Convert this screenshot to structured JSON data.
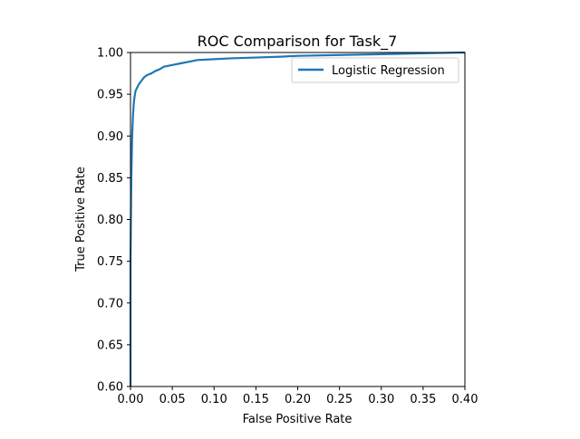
{
  "chart_data": {
    "type": "line",
    "title": "ROC Comparison for Task_7",
    "xlabel": "False Positive Rate",
    "ylabel": "True Positive Rate",
    "xlim": [
      0.0,
      0.4
    ],
    "ylim": [
      0.6,
      1.0
    ],
    "xticks": [
      "0.00",
      "0.05",
      "0.10",
      "0.15",
      "0.20",
      "0.25",
      "0.30",
      "0.35",
      "0.40"
    ],
    "yticks": [
      "0.60",
      "0.65",
      "0.70",
      "0.75",
      "0.80",
      "0.85",
      "0.90",
      "0.95",
      "1.00"
    ],
    "grid": false,
    "legend_position": "top-right",
    "series": [
      {
        "name": "Logistic Regression",
        "color": "#1f77b4",
        "x": [
          0.0,
          0.0,
          0.0005,
          0.001,
          0.0015,
          0.002,
          0.003,
          0.004,
          0.005,
          0.006,
          0.008,
          0.01,
          0.013,
          0.016,
          0.02,
          0.025,
          0.03,
          0.035,
          0.04,
          0.05,
          0.06,
          0.07,
          0.08,
          0.1,
          0.12,
          0.15,
          0.18,
          0.2,
          0.25,
          0.3,
          0.35,
          0.4
        ],
        "y": [
          0.6,
          0.75,
          0.8,
          0.85,
          0.875,
          0.9,
          0.925,
          0.94,
          0.948,
          0.954,
          0.958,
          0.962,
          0.966,
          0.97,
          0.973,
          0.975,
          0.978,
          0.98,
          0.983,
          0.985,
          0.987,
          0.989,
          0.991,
          0.992,
          0.993,
          0.994,
          0.995,
          0.996,
          0.997,
          0.998,
          0.999,
          1.0
        ]
      }
    ]
  }
}
